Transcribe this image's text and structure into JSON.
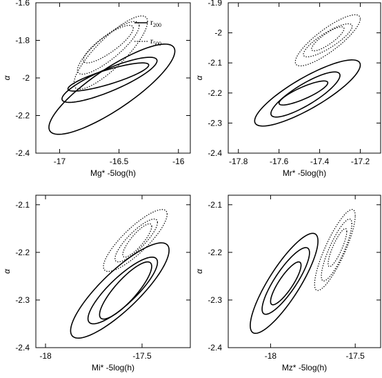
{
  "figure": {
    "legend": {
      "entries": [
        {
          "label": "r",
          "sub": "200",
          "style": "solid"
        },
        {
          "label": "r",
          "sub": "500",
          "style": "dotted"
        }
      ]
    }
  },
  "chart_data": [
    {
      "type": "contour",
      "xlabel": "Mg* -5log(h)",
      "ylabel": "α",
      "xlim": [
        -17.2,
        -15.9
      ],
      "ylim": [
        -2.4,
        -1.6
      ],
      "xticks": [
        -17,
        -16.5,
        -16
      ],
      "xtick_labels": [
        "-17",
        "-16.5",
        "-16"
      ],
      "yticks": [
        -2.4,
        -2.2,
        -2,
        -1.8,
        -1.6
      ],
      "ytick_labels": [
        "-2.4",
        "-2.2",
        "-2",
        "-1.8",
        "-1.6"
      ],
      "series": [
        {
          "name": "r200",
          "style": "solid",
          "center": [
            -16.6,
            -2.0
          ],
          "contours": [
            {
              "x_range": [
                -16.93,
                -16.25
              ],
              "y_range": [
                -2.07,
                -1.92
              ]
            },
            {
              "x_range": [
                -16.98,
                -16.18
              ],
              "y_range": [
                -2.13,
                -1.89
              ]
            },
            {
              "x_range": [
                -17.09,
                -16.03
              ],
              "y_range": [
                -2.3,
                -1.82
              ]
            }
          ]
        },
        {
          "name": "r500",
          "style": "dotted",
          "center": [
            -16.6,
            -1.85
          ],
          "contours": [
            {
              "x_range": [
                -16.8,
                -16.38
              ],
              "y_range": [
                -1.92,
                -1.72
              ]
            },
            {
              "x_range": [
                -16.85,
                -16.33
              ],
              "y_range": [
                -1.98,
                -1.7
              ]
            },
            {
              "x_range": [
                -16.88,
                -16.26
              ],
              "y_range": [
                -2.06,
                -1.67
              ]
            }
          ]
        }
      ]
    },
    {
      "type": "contour",
      "xlabel": "Mr* -5log(h)",
      "ylabel": "α",
      "xlim": [
        -17.85,
        -17.1
      ],
      "ylim": [
        -2.4,
        -1.9
      ],
      "xticks": [
        -17.8,
        -17.6,
        -17.4,
        -17.2
      ],
      "xtick_labels": [
        "-17.8",
        "-17.6",
        "-17.4",
        "-17.2"
      ],
      "yticks": [
        -2.4,
        -2.3,
        -2.2,
        -2.1,
        -2,
        -1.9
      ],
      "ytick_labels": [
        "-2.4",
        "-2.3",
        "-2.2",
        "-2.1",
        "-2",
        "-1.9"
      ],
      "series": [
        {
          "name": "r200",
          "style": "solid",
          "center": [
            -17.51,
            -2.2
          ],
          "contours": [
            {
              "x_range": [
                -17.6,
                -17.36
              ],
              "y_range": [
                -2.24,
                -2.16
              ]
            },
            {
              "x_range": [
                -17.64,
                -17.3
              ],
              "y_range": [
                -2.28,
                -2.13
              ]
            },
            {
              "x_range": [
                -17.72,
                -17.2
              ],
              "y_range": [
                -2.31,
                -2.09
              ]
            }
          ]
        },
        {
          "name": "r500",
          "style": "dotted",
          "center": [
            -17.36,
            -2.02
          ],
          "contours": [
            {
              "x_range": [
                -17.44,
                -17.28
              ],
              "y_range": [
                -2.06,
                -1.98
              ]
            },
            {
              "x_range": [
                -17.48,
                -17.24
              ],
              "y_range": [
                -2.08,
                -1.97
              ]
            },
            {
              "x_range": [
                -17.52,
                -17.2
              ],
              "y_range": [
                -2.11,
                -1.94
              ]
            }
          ]
        }
      ]
    },
    {
      "type": "contour",
      "xlabel": "Mi* -5log(h)",
      "ylabel": "α",
      "xlim": [
        -18.05,
        -17.25
      ],
      "ylim": [
        -2.4,
        -2.08
      ],
      "xticks": [
        -18,
        -17.5
      ],
      "xtick_labels": [
        "-18",
        "-17.5"
      ],
      "yticks": [
        -2.4,
        -2.3,
        -2.2,
        -2.1
      ],
      "ytick_labels": [
        "-2.4",
        "-2.3",
        "-2.2",
        "-2.1"
      ],
      "series": [
        {
          "name": "r200",
          "style": "solid",
          "center": [
            -17.6,
            -2.28
          ],
          "contours": [
            {
              "x_range": [
                -17.72,
                -17.45
              ],
              "y_range": [
                -2.34,
                -2.22
              ]
            },
            {
              "x_range": [
                -17.78,
                -17.42
              ],
              "y_range": [
                -2.35,
                -2.21
              ]
            },
            {
              "x_range": [
                -17.87,
                -17.36
              ],
              "y_range": [
                -2.38,
                -2.18
              ]
            }
          ]
        },
        {
          "name": "r500",
          "style": "dotted",
          "center": [
            -17.53,
            -2.18
          ],
          "contours": [
            {
              "x_range": [
                -17.6,
                -17.45
              ],
              "y_range": [
                -2.21,
                -2.14
              ]
            },
            {
              "x_range": [
                -17.64,
                -17.42
              ],
              "y_range": [
                -2.22,
                -2.13
              ]
            },
            {
              "x_range": [
                -17.7,
                -17.37
              ],
              "y_range": [
                -2.24,
                -2.11
              ]
            }
          ]
        }
      ]
    },
    {
      "type": "contour",
      "xlabel": "Mz* -5log(h)",
      "ylabel": "α",
      "xlim": [
        -18.25,
        -17.35
      ],
      "ylim": [
        -2.4,
        -2.08
      ],
      "xticks": [
        -18,
        -17.5
      ],
      "xtick_labels": [
        "-18",
        "-17.5"
      ],
      "yticks": [
        -2.4,
        -2.3,
        -2.2,
        -2.1
      ],
      "ytick_labels": [
        "-2.4",
        "-2.3",
        "-2.2",
        "-2.1"
      ],
      "series": [
        {
          "name": "r200",
          "style": "solid",
          "center": [
            -17.93,
            -2.26
          ],
          "contours": [
            {
              "x_range": [
                -18.0,
                -17.82
              ],
              "y_range": [
                -2.31,
                -2.22
              ]
            },
            {
              "x_range": [
                -18.05,
                -17.77
              ],
              "y_range": [
                -2.33,
                -2.19
              ]
            },
            {
              "x_range": [
                -18.12,
                -17.72
              ],
              "y_range": [
                -2.37,
                -2.16
              ]
            }
          ]
        },
        {
          "name": "r500",
          "style": "dotted",
          "center": [
            -17.6,
            -2.18
          ],
          "contours": [
            {
              "x_range": [
                -17.66,
                -17.55
              ],
              "y_range": [
                -2.23,
                -2.15
              ]
            },
            {
              "x_range": [
                -17.7,
                -17.52
              ],
              "y_range": [
                -2.26,
                -2.13
              ]
            },
            {
              "x_range": [
                -17.74,
                -17.5
              ],
              "y_range": [
                -2.28,
                -2.11
              ]
            }
          ]
        }
      ]
    }
  ]
}
